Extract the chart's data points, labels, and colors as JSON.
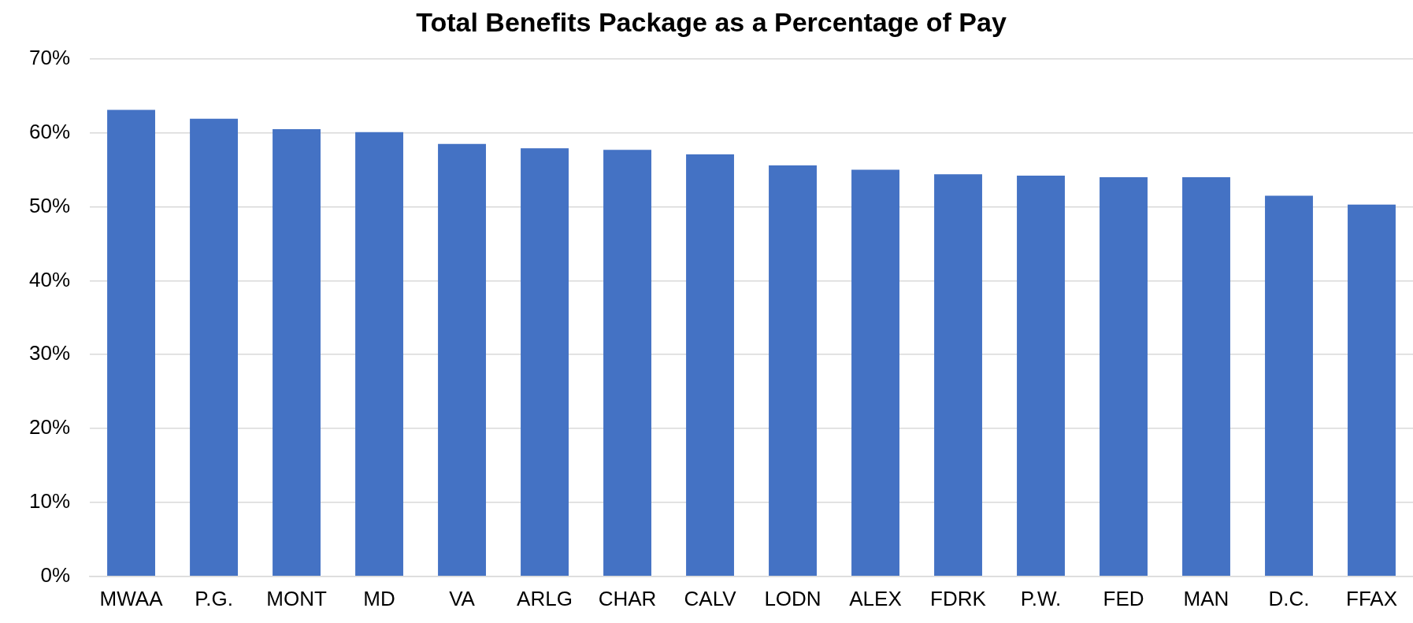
{
  "chart_data": {
    "type": "bar",
    "title": "Total Benefits Package as a Percentage of Pay",
    "categories": [
      "MWAA",
      "P.G.",
      "MONT",
      "MD",
      "VA",
      "ARLG",
      "CHAR",
      "CALV",
      "LODN",
      "ALEX",
      "FDRK",
      "P.W.",
      "FED",
      "MAN",
      "D.C.",
      "FFAX"
    ],
    "values": [
      63.1,
      61.9,
      60.5,
      60.1,
      58.5,
      57.9,
      57.7,
      57.1,
      55.6,
      55.0,
      54.4,
      54.2,
      54.0,
      54.0,
      51.5,
      50.3
    ],
    "color": "#4472c4",
    "ylim": [
      0,
      70
    ],
    "yticks": [
      {
        "value": 0,
        "label": "0%"
      },
      {
        "value": 10,
        "label": "10%"
      },
      {
        "value": 20,
        "label": "20%"
      },
      {
        "value": 30,
        "label": "30%"
      },
      {
        "value": 40,
        "label": "40%"
      },
      {
        "value": 50,
        "label": "50%"
      },
      {
        "value": 60,
        "label": "60%"
      },
      {
        "value": 70,
        "label": "70%"
      }
    ],
    "grid": "y"
  }
}
